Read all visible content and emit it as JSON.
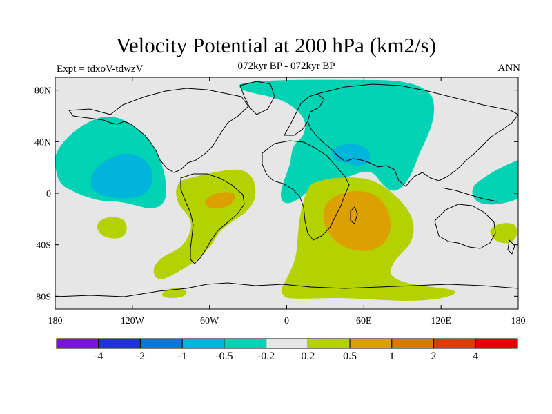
{
  "title": "Velocity Potential at 200 hPa (km2/s)",
  "subtitle": "072kyr BP - 072kyr BP",
  "experiment_label": "Expt = tdxoV-tdwzV",
  "season_label": "ANN",
  "map": {
    "projection": "cylindrical-equidistant",
    "lon_range": [
      -180,
      180
    ],
    "lat_range": [
      -90,
      90
    ],
    "background_color": "#e6e6e6",
    "coastline_color": "#000000",
    "x_ticks": [
      {
        "lon": -180,
        "label": "180"
      },
      {
        "lon": -120,
        "label": "120W"
      },
      {
        "lon": -60,
        "label": "60W"
      },
      {
        "lon": 0,
        "label": "0"
      },
      {
        "lon": 60,
        "label": "60E"
      },
      {
        "lon": 120,
        "label": "120E"
      },
      {
        "lon": 180,
        "label": "180"
      }
    ],
    "y_ticks": [
      {
        "lat": 80,
        "label": "80N"
      },
      {
        "lat": 40,
        "label": "40N"
      },
      {
        "lat": 0,
        "label": "0"
      },
      {
        "lat": -40,
        "label": "40S"
      },
      {
        "lat": -80,
        "label": "80S"
      }
    ]
  },
  "contour_regions": [
    {
      "name": "north-pacific-negative",
      "level": "-0.5 to -0.2",
      "color": "#00d2b4"
    },
    {
      "name": "east-pacific-core",
      "level": "-1 to -0.5",
      "color": "#00b4dc"
    },
    {
      "name": "arctic-eurasia-negative",
      "level": "-0.5 to -0.2",
      "color": "#00d2b4"
    },
    {
      "name": "middle-east-core",
      "level": "-1 to -0.5",
      "color": "#00b4dc"
    },
    {
      "name": "western-pacific-negative",
      "level": "-0.5 to -0.2",
      "color": "#00d2b4"
    },
    {
      "name": "south-america-positive",
      "level": "0.2 to 0.5",
      "color": "#b4d200"
    },
    {
      "name": "amazon-core",
      "level": "0.5 to 1",
      "color": "#dca000"
    },
    {
      "name": "africa-indian-ocean-positive",
      "level": "0.2 to 0.5",
      "color": "#b4d200"
    },
    {
      "name": "madagascar-core",
      "level": "0.5 to 1",
      "color": "#dca000"
    },
    {
      "name": "south-pacific-positive",
      "level": "0.2 to 0.5",
      "color": "#b4d200"
    },
    {
      "name": "australia-east-positive",
      "level": "0.2 to 0.5",
      "color": "#b4d200"
    }
  ],
  "colorbar": {
    "colors": [
      "#7814dc",
      "#1e32dc",
      "#0078dc",
      "#00b4dc",
      "#00d2b4",
      "#e6e6e6",
      "#b4d200",
      "#dca000",
      "#dc7800",
      "#dc3c00",
      "#e60000"
    ],
    "labels": [
      "-4",
      "-2",
      "-1",
      "-0.5",
      "-0.2",
      "0.2",
      "0.5",
      "1",
      "2",
      "4"
    ]
  }
}
